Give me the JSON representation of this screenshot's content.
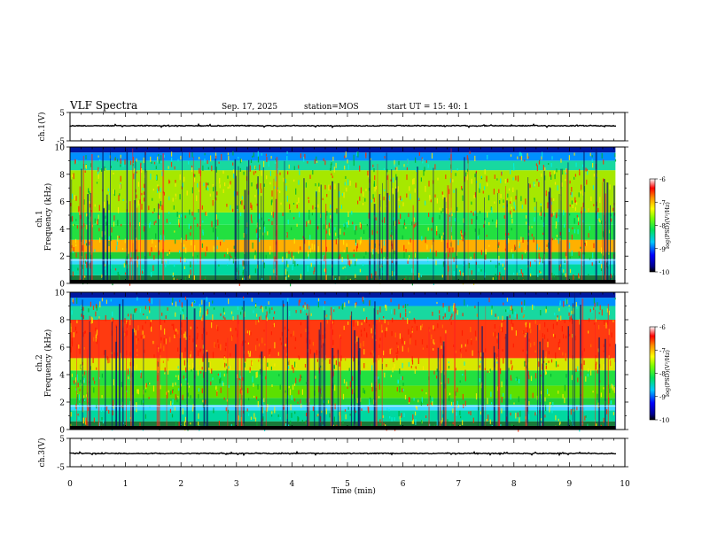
{
  "header": {
    "title": "VLF Spectra",
    "date": "Sep. 17, 2025",
    "station": "station=MOS",
    "start": "start  UT  =   15: 40: 1"
  },
  "chart_data": [
    {
      "type": "line",
      "name": "ch1-waveform",
      "ylabel": "ch.1(V)",
      "ylim": [
        -5,
        5
      ],
      "yticks": [
        "5",
        "-5"
      ],
      "xlim": [
        0,
        10
      ]
    },
    {
      "type": "heatmap",
      "name": "ch1-spectrogram",
      "ylabel_top": "ch.1",
      "ylabel": "Frequency (kHz)",
      "ylim": [
        0,
        10
      ],
      "yticks": [
        "0",
        "2",
        "4",
        "6",
        "8",
        "10"
      ],
      "xlim": [
        0,
        10
      ],
      "colorbar": {
        "label": "log(PSD)(V²/Hz)",
        "ticks": [
          "-6",
          "-7",
          "-8",
          "-9",
          "-10"
        ],
        "range": [
          -10,
          -6
        ]
      }
    },
    {
      "type": "heatmap",
      "name": "ch2-spectrogram",
      "ylabel_top": "ch.2",
      "ylabel": "Frequency (kHz)",
      "ylim": [
        0,
        10
      ],
      "yticks": [
        "0",
        "2",
        "4",
        "6",
        "8",
        "10"
      ],
      "xlim": [
        0,
        10
      ],
      "colorbar": {
        "label": "log(PSD)(V²/Hz)",
        "ticks": [
          "-6",
          "-7",
          "-8",
          "-9",
          "-10"
        ],
        "range": [
          -10,
          -6
        ]
      }
    },
    {
      "type": "line",
      "name": "ch3-waveform",
      "ylabel": "ch.3(V)",
      "ylim": [
        -5,
        5
      ],
      "yticks": [
        "5",
        "-5"
      ],
      "xlim": [
        0,
        10
      ],
      "xlabel": "Time (min)",
      "xticks": [
        "0",
        "1",
        "2",
        "3",
        "4",
        "5",
        "6",
        "7",
        "8",
        "9",
        "10"
      ]
    }
  ]
}
